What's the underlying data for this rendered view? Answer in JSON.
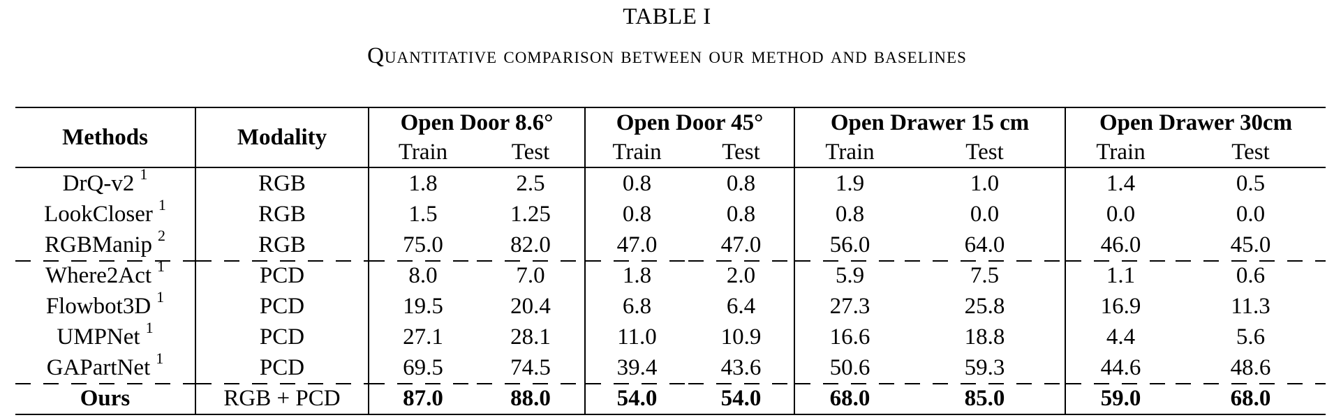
{
  "table_label": "TABLE I",
  "caption": "Quantitative comparison between our method and baselines",
  "columns": {
    "methods": "Methods",
    "modality": "Modality",
    "groups": [
      "Open Door 8.6°",
      "Open Door 45°",
      "Open Drawer 15 cm",
      "Open Drawer 30cm"
    ],
    "train": "Train",
    "test": "Test"
  },
  "rows": [
    {
      "method": "DrQ-v2",
      "fn": "1",
      "modality": "RGB",
      "v": [
        "1.8",
        "2.5",
        "0.8",
        "0.8",
        "1.9",
        "1.0",
        "1.4",
        "0.5"
      ]
    },
    {
      "method": "LookCloser",
      "fn": "1",
      "modality": "RGB",
      "v": [
        "1.5",
        "1.25",
        "0.8",
        "0.8",
        "0.8",
        "0.0",
        "0.0",
        "0.0"
      ]
    },
    {
      "method": "RGBManip",
      "fn": "2",
      "modality": "RGB",
      "v": [
        "75.0",
        "82.0",
        "47.0",
        "47.0",
        "56.0",
        "64.0",
        "46.0",
        "45.0"
      ]
    },
    {
      "method": "Where2Act",
      "fn": "1",
      "modality": "PCD",
      "v": [
        "8.0",
        "7.0",
        "1.8",
        "2.0",
        "5.9",
        "7.5",
        "1.1",
        "0.6"
      ]
    },
    {
      "method": "Flowbot3D",
      "fn": "1",
      "modality": "PCD",
      "v": [
        "19.5",
        "20.4",
        "6.8",
        "6.4",
        "27.3",
        "25.8",
        "16.9",
        "11.3"
      ]
    },
    {
      "method": "UMPNet",
      "fn": "1",
      "modality": "PCD",
      "v": [
        "27.1",
        "28.1",
        "11.0",
        "10.9",
        "16.6",
        "18.8",
        "4.4",
        "5.6"
      ]
    },
    {
      "method": "GAPartNet",
      "fn": "1",
      "modality": "PCD",
      "v": [
        "69.5",
        "74.5",
        "39.4",
        "43.6",
        "50.6",
        "59.3",
        "44.6",
        "48.6"
      ]
    },
    {
      "method": "Ours",
      "fn": "",
      "modality": "RGB + PCD",
      "v": [
        "87.0",
        "88.0",
        "54.0",
        "54.0",
        "68.0",
        "85.0",
        "59.0",
        "68.0"
      ]
    }
  ]
}
